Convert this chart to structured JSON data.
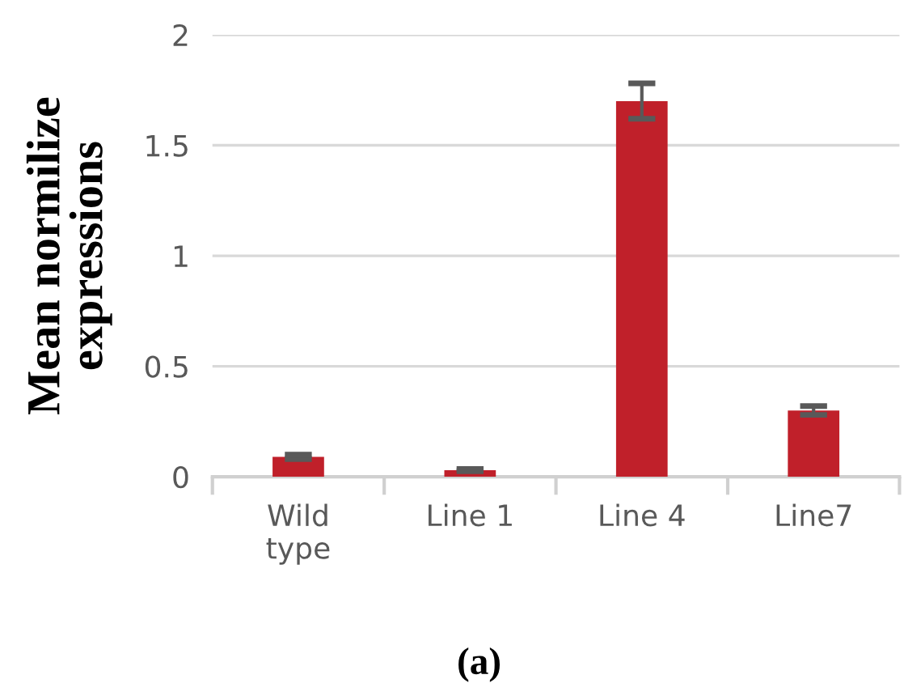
{
  "chart_data": {
    "type": "bar",
    "categories": [
      "Wild\ntype",
      "Line 1",
      "Line 4",
      "Line7"
    ],
    "values": [
      0.09,
      0.03,
      1.7,
      0.3
    ],
    "errors": [
      0.01,
      0.005,
      0.08,
      0.02
    ],
    "color": "#c0202a",
    "ylabel": "Mean normilize\nexpressions",
    "ylim": [
      0,
      2
    ],
    "yticks": [
      0,
      0.5,
      1,
      1.5,
      2
    ],
    "grid": "y",
    "annotations": [
      "(a)"
    ]
  }
}
